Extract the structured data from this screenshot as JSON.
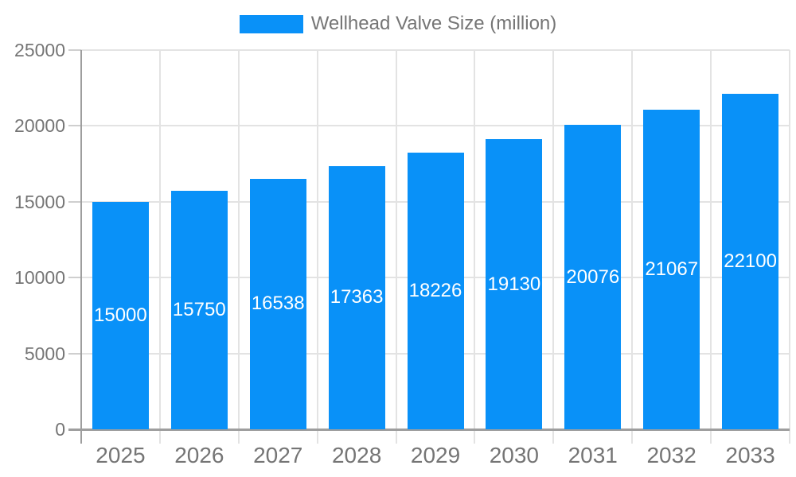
{
  "legend": {
    "label": "Wellhead Valve Size (million)"
  },
  "chart_data": {
    "type": "bar",
    "title": "Wellhead Valve Size (million)",
    "series_name": "Wellhead Valve Size (million)",
    "categories": [
      "2025",
      "2026",
      "2027",
      "2028",
      "2029",
      "2030",
      "2031",
      "2032",
      "2033"
    ],
    "values": [
      15000,
      15750,
      16538,
      17363,
      18226,
      19130,
      20076,
      21067,
      22100
    ],
    "data_labels": [
      "15000",
      "15750",
      "16538",
      "17363",
      "18226",
      "19130",
      "20076",
      "21067",
      "22100"
    ],
    "xlabel": "",
    "ylabel": "",
    "ylim": [
      0,
      25000
    ],
    "yticks": [
      0,
      5000,
      10000,
      15000,
      20000,
      25000
    ],
    "grid": true,
    "legend_position": "top",
    "colors": {
      "bar": "#0991f8",
      "bar_label": "#ffffff",
      "axis_text": "#757575",
      "grid_line": "#e3e3e3",
      "axis_line": "#9e9e9e",
      "tick_stub": "#cfcfcf",
      "background": "#ffffff"
    }
  }
}
